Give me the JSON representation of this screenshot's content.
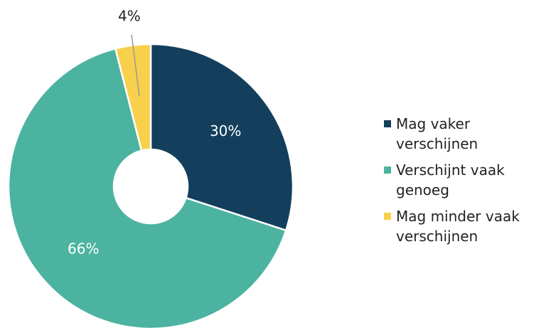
{
  "chart_data": {
    "type": "donut",
    "categories": [
      "Mag vaker verschijnen",
      "Verschijnt vaak genoeg",
      "Mag minder vaak verschijnen"
    ],
    "values": [
      30,
      66,
      4
    ],
    "value_labels": [
      "30%",
      "66%",
      "4%"
    ],
    "colors": [
      "#133f5c",
      "#4bb3a0",
      "#f8d04b"
    ],
    "legend": "right"
  }
}
